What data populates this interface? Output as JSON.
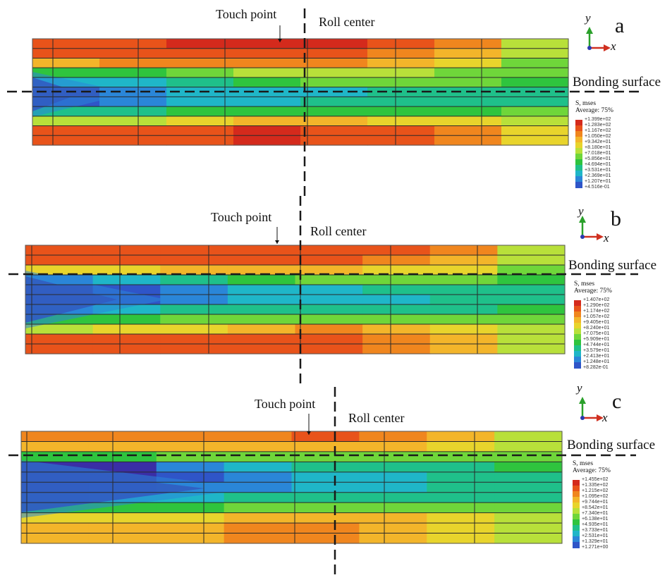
{
  "panels": [
    {
      "id": "a",
      "label": "a",
      "touch_point": "Touch point",
      "roll_center": "Roll center",
      "bonding_surface": "Bonding surface",
      "legend": {
        "title": "S, mses",
        "average": "Average: 75%",
        "ticks": [
          "+1.399e+02",
          "+1.283e+02",
          "+1.167e+02",
          "+1.050e+02",
          "+9.342e+01",
          "+8.180e+01",
          "+7.018e+01",
          "+5.856e+01",
          "+4.694e+01",
          "+3.531e+01",
          "+2.369e+01",
          "+1.207e+01",
          "+4.516e-01"
        ]
      }
    },
    {
      "id": "b",
      "label": "b",
      "touch_point": "Touch point",
      "roll_center": "Roll center",
      "bonding_surface": "Bonding surface",
      "legend": {
        "title": "S, mses",
        "average": "Average: 75%",
        "ticks": [
          "+1.407e+02",
          "+1.290e+02",
          "+1.174e+02",
          "+1.057e+02",
          "+9.405e+01",
          "+8.240e+01",
          "+7.075e+01",
          "+5.909e+01",
          "+4.744e+01",
          "+3.579e+01",
          "+2.413e+01",
          "+1.248e+01",
          "+8.282e-01"
        ]
      }
    },
    {
      "id": "c",
      "label": "c",
      "touch_point": "Touch point",
      "roll_center": "Roll center",
      "bonding_surface": "Bonding surface",
      "legend": {
        "title": "S, mses",
        "average": "Average: 75%",
        "ticks": [
          "+1.455e+02",
          "+1.335e+02",
          "+1.215e+02",
          "+1.095e+02",
          "+9.744e+01",
          "+8.542e+01",
          "+7.340e+01",
          "+6.138e+01",
          "+4.935e+01",
          "+3.733e+01",
          "+2.531e+01",
          "+1.329e+01",
          "+1.271e+00"
        ]
      }
    }
  ],
  "axes": {
    "y": "y",
    "x": "x"
  },
  "colors": {
    "scale": [
      "#d42a1c",
      "#e8531a",
      "#f0861e",
      "#f3b52a",
      "#e8d42c",
      "#b8e03a",
      "#6fd63a",
      "#2fc43e",
      "#1fc08a",
      "#1fb6c8",
      "#2a86d8",
      "#2f55c8",
      "#3a2ea6"
    ],
    "grid": "#2a2a2a",
    "dash": "#1a1a1a"
  }
}
